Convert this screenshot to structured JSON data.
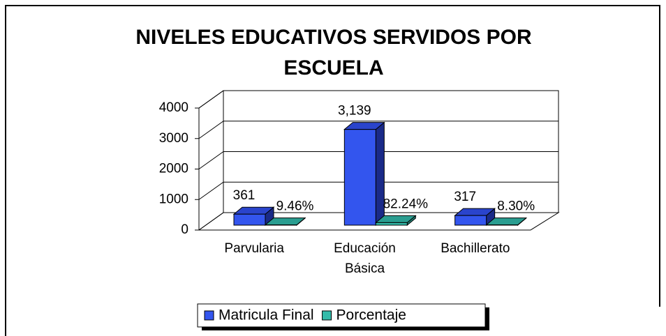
{
  "chart_data": {
    "type": "bar3d",
    "title": "NIVELES EDUCATIVOS SERVIDOS POR ESCUELA",
    "categories": [
      "Parvularia",
      "Educación Básica",
      "Bachillerato"
    ],
    "series": [
      {
        "name": "Matricula Final",
        "color": "#3355ee",
        "values": [
          361,
          3139,
          317
        ],
        "value_labels": [
          "361",
          "3,139",
          "317"
        ]
      },
      {
        "name": "Porcentaje",
        "color": "#33bbaa",
        "values": [
          9.46,
          82.24,
          8.3
        ],
        "value_labels": [
          "9.46%",
          "82.24%",
          "8.30%"
        ]
      }
    ],
    "ylim": [
      0,
      4000
    ],
    "yticks": [
      0,
      1000,
      2000,
      3000,
      4000
    ],
    "grid": true,
    "legend": "bottom"
  }
}
